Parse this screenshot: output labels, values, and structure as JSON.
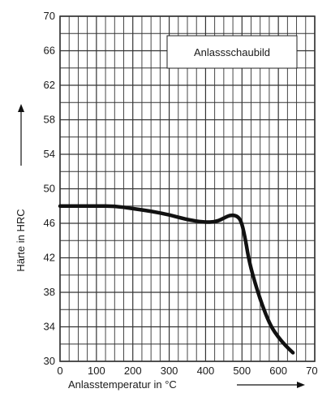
{
  "chart_data": {
    "type": "line",
    "title": "",
    "legend_box": "Anlassschaubild",
    "xlabel": "Anlasstemperatur in °C",
    "ylabel": "Härte in HRC",
    "xlim": [
      0,
      700
    ],
    "ylim": [
      30,
      70
    ],
    "x_ticks": [
      "0",
      "100",
      "200",
      "300",
      "400",
      "500",
      "600",
      "700"
    ],
    "y_ticks": [
      "30",
      "34",
      "38",
      "42",
      "46",
      "50",
      "54",
      "58",
      "62",
      "66",
      "70"
    ],
    "grid": true,
    "series": [
      {
        "x": [
          0,
          50,
          100,
          150,
          200,
          250,
          300,
          350,
          400,
          430,
          450,
          470,
          490,
          500,
          510,
          520,
          540,
          560,
          580,
          600,
          620,
          640
        ],
        "y": [
          48,
          48,
          48,
          48,
          47.7,
          47.4,
          47.0,
          46.4,
          46.1,
          46.2,
          46.6,
          47.0,
          46.8,
          46.0,
          44.0,
          41.5,
          38.5,
          36.0,
          34.0,
          32.8,
          31.8,
          31.0
        ]
      }
    ],
    "line_color": "#111111",
    "grid_color": "#333333"
  }
}
